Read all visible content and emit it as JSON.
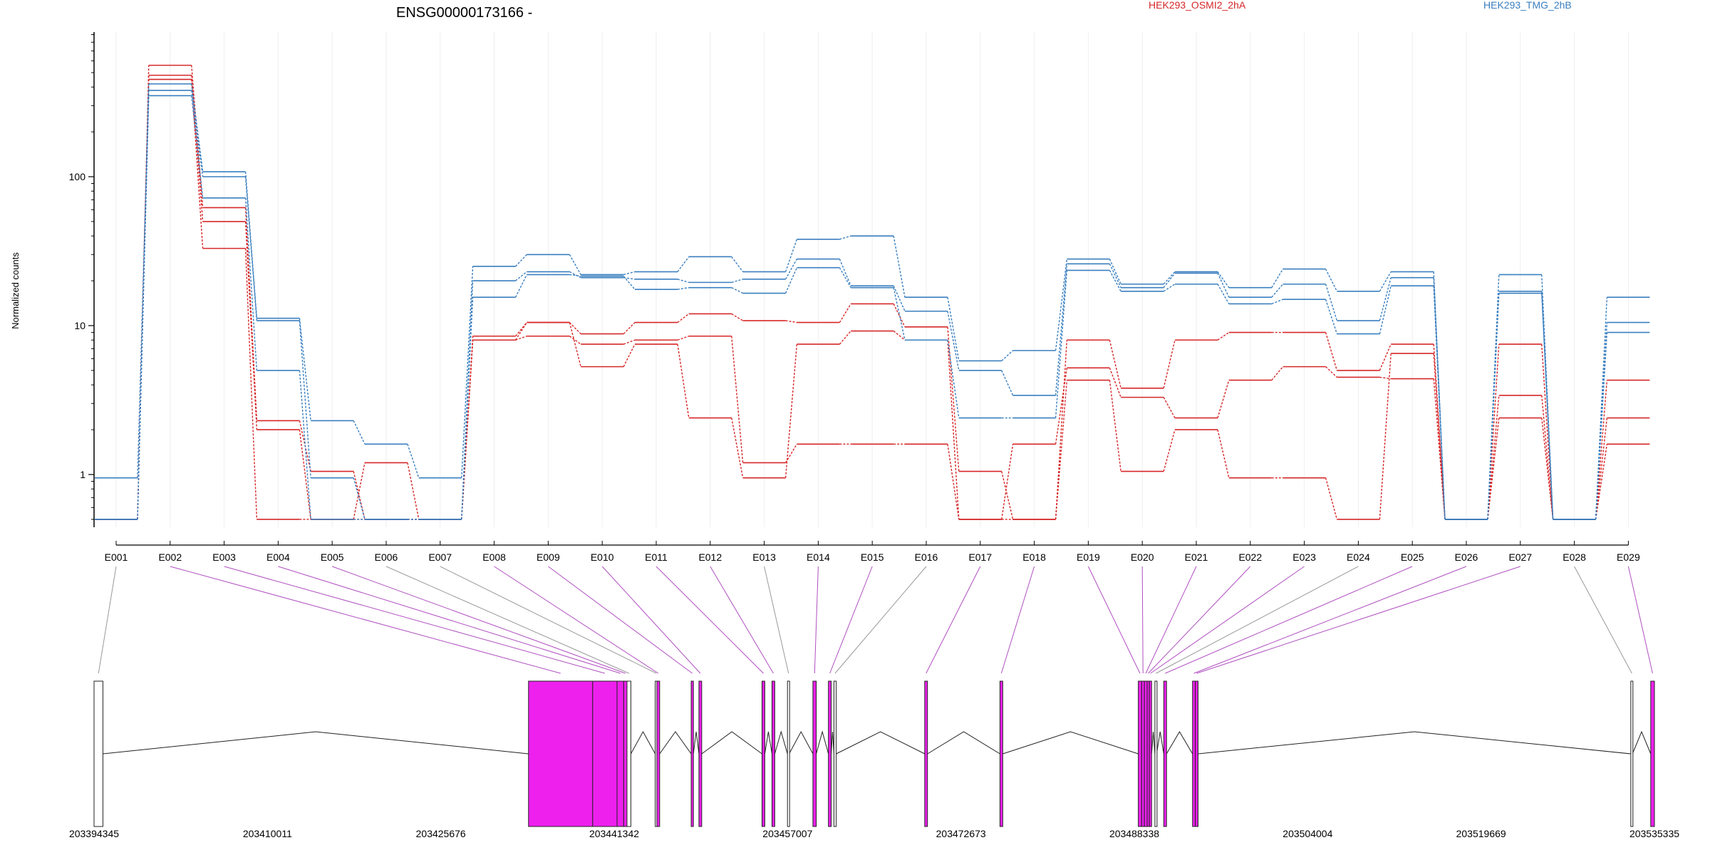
{
  "chart_data": {
    "type": "line",
    "title": "ENSG00000173166 -",
    "ylabel": "Normalized counts",
    "y_scale": "log",
    "ylim": [
      0.5,
      900
    ],
    "y_ticks": [
      "1",
      "10",
      "100"
    ],
    "y_tick_values": [
      1,
      10,
      100
    ],
    "categories": [
      "E001",
      "E002",
      "E003",
      "E004",
      "E005",
      "E006",
      "E007",
      "E008",
      "E009",
      "E010",
      "E011",
      "E012",
      "E013",
      "E014",
      "E015",
      "E016",
      "E017",
      "E018",
      "E019",
      "E020",
      "E021",
      "E022",
      "E023",
      "E024",
      "E025",
      "E026",
      "E027",
      "E028",
      "E029"
    ],
    "legend": [
      {
        "name": "HEK293_OSMI2_2hA",
        "color": "#d62728"
      },
      {
        "name": "HEK293_TMG_2hB",
        "color": "#3a7fbf"
      }
    ],
    "series": [
      {
        "group": "HEK293_OSMI2_2hA",
        "color": "#d62728",
        "values": [
          0.5,
          560,
          62,
          2.3,
          1.05,
          0.5,
          0.5,
          8.5,
          10.5,
          8.8,
          10.5,
          12,
          10.8,
          10.5,
          14,
          9.8,
          1.05,
          0.5,
          8,
          3.8,
          8,
          9,
          9,
          5,
          7.5,
          0.5,
          7.5,
          0.5,
          4.3
        ]
      },
      {
        "group": "HEK293_OSMI2_2hA",
        "color": "#d62728",
        "values": [
          0.5,
          480,
          50,
          2.0,
          0.5,
          1.2,
          0.5,
          8,
          8.5,
          7.5,
          8,
          8.5,
          1.2,
          1.6,
          1.6,
          1.6,
          0.5,
          1.6,
          5.2,
          3.3,
          2.4,
          4.3,
          5.3,
          4.5,
          4.4,
          0.5,
          3.4,
          0.5,
          1.6
        ]
      },
      {
        "group": "HEK293_OSMI2_2hA",
        "color": "#d62728",
        "values": [
          0.5,
          450,
          33,
          0.5,
          0.5,
          0.5,
          0.5,
          8,
          10.5,
          5.3,
          7.5,
          2.4,
          0.95,
          7.5,
          9.2,
          8,
          0.5,
          0.5,
          4.3,
          1.05,
          2.0,
          0.95,
          0.95,
          0.5,
          6.5,
          0.5,
          2.4,
          0.5,
          2.4
        ]
      },
      {
        "group": "HEK293_TMG_2hB",
        "color": "#3a7fbf",
        "values": [
          0.95,
          420,
          108,
          11.2,
          2.3,
          1.6,
          0.95,
          25,
          30,
          22,
          23,
          29,
          23,
          38,
          40,
          15.5,
          5.8,
          6.8,
          28,
          19,
          23,
          18,
          24,
          17,
          23,
          0.5,
          22,
          0.5,
          15.5
        ]
      },
      {
        "group": "HEK293_TMG_2hB",
        "color": "#3a7fbf",
        "values": [
          0.5,
          380,
          100,
          10.8,
          0.95,
          0.5,
          0.5,
          20,
          23,
          21,
          20.5,
          19.5,
          20.5,
          28,
          18.5,
          12.5,
          5.0,
          3.4,
          26,
          18,
          22.5,
          15.5,
          19,
          10.8,
          21,
          0.5,
          17,
          0.5,
          10.5
        ]
      },
      {
        "group": "HEK293_TMG_2hB",
        "color": "#3a7fbf",
        "values": [
          0.5,
          350,
          72,
          5.0,
          0.5,
          0.5,
          0.5,
          15.5,
          22,
          21.5,
          17.5,
          18,
          16.5,
          24.5,
          18,
          8,
          2.4,
          2.4,
          23.5,
          17,
          19,
          14,
          15,
          8.8,
          18.5,
          0.5,
          16.5,
          0.5,
          9
        ]
      }
    ],
    "exon_dash_segments": [
      1,
      1,
      1,
      1,
      1,
      1,
      1,
      1,
      1,
      1,
      1,
      1,
      1,
      1,
      1,
      1,
      1,
      1,
      1,
      1,
      1,
      1,
      1,
      1,
      1,
      1,
      1,
      1
    ]
  },
  "gene_model": {
    "coordinates": [
      "203394345",
      "203410011",
      "203425676",
      "203441342",
      "203457007",
      "203472673",
      "203488338",
      "203504004",
      "203519669",
      "203535335"
    ],
    "coordinate_values": [
      203394345,
      203410011,
      203425676,
      203441342,
      203457007,
      203472673,
      203488338,
      203504004,
      203519669,
      203535335
    ],
    "exons": [
      {
        "id": "E001",
        "start": 203394345,
        "end": 203395145,
        "highlight": false
      },
      {
        "id": "E002",
        "start": 203433600,
        "end": 203439400,
        "highlight": true
      },
      {
        "id": "E003",
        "start": 203439400,
        "end": 203441600,
        "highlight": true
      },
      {
        "id": "E004",
        "start": 203441600,
        "end": 203442200,
        "highlight": true
      },
      {
        "id": "E005",
        "start": 203442200,
        "end": 203442500,
        "highlight": true
      },
      {
        "id": "E006",
        "start": 203442500,
        "end": 203442850,
        "highlight": false
      },
      {
        "id": "E007",
        "start": 203445050,
        "end": 203445200,
        "highlight": false
      },
      {
        "id": "E008",
        "start": 203445200,
        "end": 203445450,
        "highlight": true
      },
      {
        "id": "E009",
        "start": 203448300,
        "end": 203448500,
        "highlight": true
      },
      {
        "id": "E010",
        "start": 203449000,
        "end": 203449250,
        "highlight": true
      },
      {
        "id": "E011",
        "start": 203454700,
        "end": 203454950,
        "highlight": true
      },
      {
        "id": "E012",
        "start": 203455600,
        "end": 203455850,
        "highlight": true
      },
      {
        "id": "E013",
        "start": 203457000,
        "end": 203457150,
        "highlight": false
      },
      {
        "id": "E014",
        "start": 203459300,
        "end": 203459600,
        "highlight": true
      },
      {
        "id": "E015",
        "start": 203460700,
        "end": 203460950,
        "highlight": true
      },
      {
        "id": "E016",
        "start": 203461200,
        "end": 203461400,
        "highlight": false
      },
      {
        "id": "E017",
        "start": 203469400,
        "end": 203469650,
        "highlight": true
      },
      {
        "id": "E018",
        "start": 203476200,
        "end": 203476450,
        "highlight": true
      },
      {
        "id": "E019",
        "start": 203488700,
        "end": 203489000,
        "highlight": true
      },
      {
        "id": "E020",
        "start": 203489000,
        "end": 203489250,
        "highlight": true
      },
      {
        "id": "E021",
        "start": 203489250,
        "end": 203489500,
        "highlight": true
      },
      {
        "id": "E022",
        "start": 203489500,
        "end": 203489700,
        "highlight": true
      },
      {
        "id": "E023",
        "start": 203489700,
        "end": 203489900,
        "highlight": true
      },
      {
        "id": "E024",
        "start": 203490200,
        "end": 203490350,
        "highlight": false
      },
      {
        "id": "E025",
        "start": 203491000,
        "end": 203491250,
        "highlight": true
      },
      {
        "id": "E026",
        "start": 203493600,
        "end": 203493850,
        "highlight": true
      },
      {
        "id": "E027",
        "start": 203493850,
        "end": 203494100,
        "highlight": true
      },
      {
        "id": "E028",
        "start": 203533200,
        "end": 203533350,
        "highlight": false
      },
      {
        "id": "E029",
        "start": 203535000,
        "end": 203535335,
        "highlight": true
      }
    ],
    "highlight_color": "#ee20ee",
    "link_highlight_color": "#b04fc0",
    "link_plain_color": "#999999"
  }
}
